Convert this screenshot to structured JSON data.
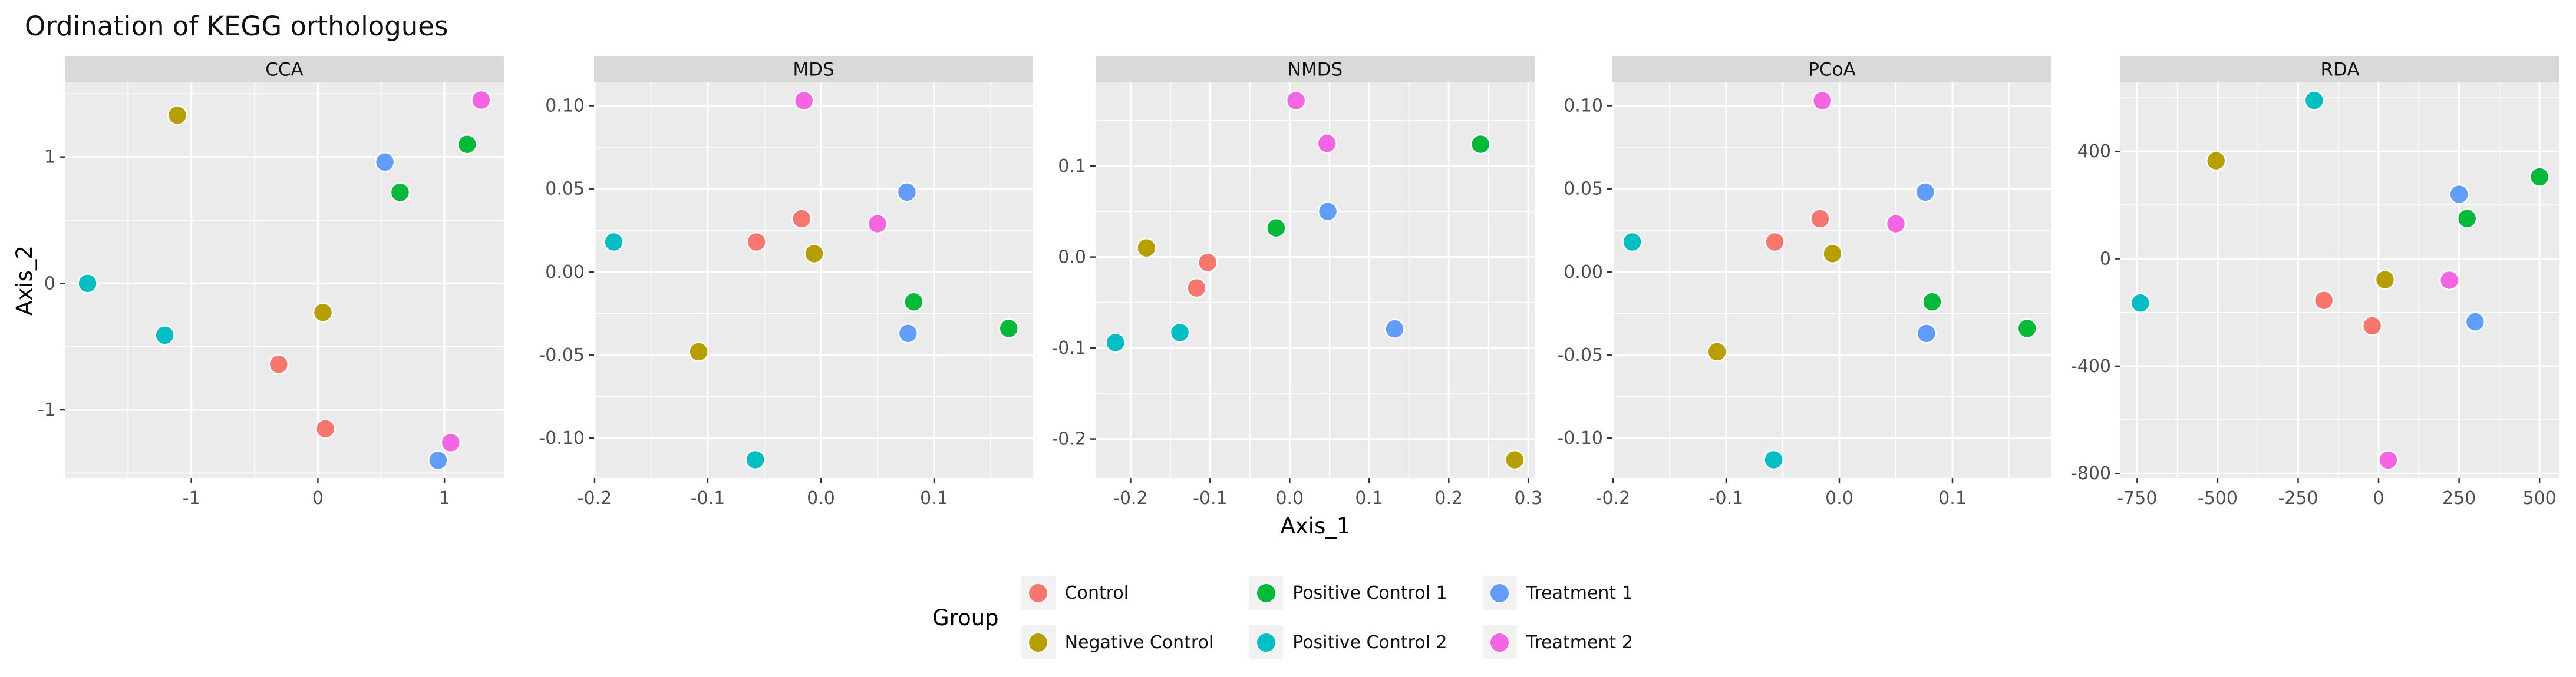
{
  "title": "Ordination of KEGG orthologues",
  "axes": {
    "x_label": "Axis_1",
    "y_label": "Axis_2"
  },
  "legend": {
    "title": "Group",
    "entries": [
      {
        "label": "Control",
        "color": "#F8766D"
      },
      {
        "label": "Negative Control",
        "color": "#B79F00"
      },
      {
        "label": "Positive Control 1",
        "color": "#00BA38"
      },
      {
        "label": "Positive Control 2",
        "color": "#00BFC4"
      },
      {
        "label": "Treatment 1",
        "color": "#619CFF"
      },
      {
        "label": "Treatment 2",
        "color": "#F564E2"
      }
    ]
  },
  "chart_data": {
    "type": "scatter",
    "title": "Ordination of KEGG orthologues",
    "xlabel": "Axis_1",
    "ylabel": "Axis_2",
    "legend_position": "bottom",
    "grid": true,
    "style": {
      "panel_bg": "#EBEBEB",
      "strip_bg": "#D9D9D9",
      "grid_color": "#FFFFFF",
      "tick_color": "#333333",
      "tick_label_color": "#4D4D4D",
      "point_stroke": "#FFFFFF"
    },
    "groups": [
      {
        "name": "Control",
        "color": "#F8766D"
      },
      {
        "name": "Negative Control",
        "color": "#B79F00"
      },
      {
        "name": "Positive Control 1",
        "color": "#00BA38"
      },
      {
        "name": "Positive Control 2",
        "color": "#00BFC4"
      },
      {
        "name": "Treatment 1",
        "color": "#619CFF"
      },
      {
        "name": "Treatment 2",
        "color": "#F564E2"
      }
    ],
    "facets": [
      {
        "name": "CCA",
        "xlim": [
          -2.0,
          1.47
        ],
        "ylim": [
          -1.54,
          1.59
        ],
        "xticks": {
          "values": [
            -1,
            0,
            1
          ],
          "labels": [
            "-1",
            "0",
            "1"
          ]
        },
        "yticks": {
          "values": [
            1,
            0,
            -1
          ],
          "labels": [
            "1",
            "0",
            "-1"
          ]
        },
        "minor_step_x": 0.5,
        "minor_step_y": 0.5,
        "series": [
          {
            "name": "Control",
            "points": [
              [
                -0.31,
                -0.64
              ],
              [
                0.06,
                -1.15
              ]
            ]
          },
          {
            "name": "Negative Control",
            "points": [
              [
                -1.11,
                1.33
              ],
              [
                0.04,
                -0.23
              ]
            ]
          },
          {
            "name": "Positive Control 1",
            "points": [
              [
                1.18,
                1.1
              ],
              [
                0.65,
                0.72
              ]
            ]
          },
          {
            "name": "Positive Control 2",
            "points": [
              [
                -1.82,
                0.0
              ],
              [
                -1.21,
                -0.41
              ]
            ]
          },
          {
            "name": "Treatment 1",
            "points": [
              [
                0.53,
                0.96
              ],
              [
                0.95,
                -1.4
              ]
            ]
          },
          {
            "name": "Treatment 2",
            "points": [
              [
                1.29,
                1.45
              ],
              [
                1.05,
                -1.26
              ]
            ]
          }
        ]
      },
      {
        "name": "MDS",
        "xlim": [
          -0.2005,
          0.1875
        ],
        "ylim": [
          -0.124,
          0.114
        ],
        "xticks": {
          "values": [
            -0.2,
            -0.1,
            0,
            0.1
          ],
          "labels": [
            "-0.2",
            "-0.1",
            "0.0",
            "0.1"
          ]
        },
        "yticks": {
          "values": [
            0.1,
            0.05,
            0,
            -0.05,
            -0.1
          ],
          "labels": [
            "0.10",
            "0.05",
            "0.00",
            "-0.05",
            "-0.10"
          ]
        },
        "minor_step_x": 0.05,
        "minor_step_y": 0.025,
        "series": [
          {
            "name": "Control",
            "points": [
              [
                -0.017,
                0.032
              ],
              [
                -0.057,
                0.018
              ]
            ]
          },
          {
            "name": "Negative Control",
            "points": [
              [
                -0.006,
                0.011
              ],
              [
                -0.108,
                -0.048
              ]
            ]
          },
          {
            "name": "Positive Control 1",
            "points": [
              [
                0.082,
                -0.018
              ],
              [
                0.166,
                -0.034
              ]
            ]
          },
          {
            "name": "Positive Control 2",
            "points": [
              [
                -0.183,
                0.018
              ],
              [
                -0.058,
                -0.113
              ]
            ]
          },
          {
            "name": "Treatment 1",
            "points": [
              [
                0.076,
                0.048
              ],
              [
                0.077,
                -0.037
              ]
            ]
          },
          {
            "name": "Treatment 2",
            "points": [
              [
                -0.015,
                0.103
              ],
              [
                0.05,
                0.029
              ]
            ]
          }
        ]
      },
      {
        "name": "NMDS",
        "xlim": [
          -0.244,
          0.308
        ],
        "ylim": [
          -0.243,
          0.192
        ],
        "xticks": {
          "values": [
            -0.2,
            -0.1,
            0,
            0.1,
            0.2,
            0.3
          ],
          "labels": [
            "-0.2",
            "-0.1",
            "0.0",
            "0.1",
            "0.2",
            "0.3"
          ]
        },
        "yticks": {
          "values": [
            0.1,
            0,
            -0.1,
            -0.2
          ],
          "labels": [
            "0.1",
            "0.0",
            "-0.1",
            "-0.2"
          ]
        },
        "minor_step_x": 0.05,
        "minor_step_y": 0.05,
        "series": [
          {
            "name": "Control",
            "points": [
              [
                -0.103,
                -0.006
              ],
              [
                -0.117,
                -0.034
              ]
            ]
          },
          {
            "name": "Negative Control",
            "points": [
              [
                -0.18,
                0.01
              ],
              [
                0.283,
                -0.223
              ]
            ]
          },
          {
            "name": "Positive Control 1",
            "points": [
              [
                -0.017,
                0.032
              ],
              [
                0.24,
                0.124
              ]
            ]
          },
          {
            "name": "Positive Control 2",
            "points": [
              [
                -0.219,
                -0.094
              ],
              [
                -0.138,
                -0.083
              ]
            ]
          },
          {
            "name": "Treatment 1",
            "points": [
              [
                0.048,
                0.05
              ],
              [
                0.132,
                -0.079
              ]
            ]
          },
          {
            "name": "Treatment 2",
            "points": [
              [
                0.008,
                0.172
              ],
              [
                0.047,
                0.125
              ]
            ]
          }
        ]
      },
      {
        "name": "PCoA",
        "xlim": [
          -0.2005,
          0.1875
        ],
        "ylim": [
          -0.124,
          0.114
        ],
        "xticks": {
          "values": [
            -0.2,
            -0.1,
            0,
            0.1
          ],
          "labels": [
            "-0.2",
            "-0.1",
            "0.0",
            "0.1"
          ]
        },
        "yticks": {
          "values": [
            0.1,
            0.05,
            0,
            -0.05,
            -0.1
          ],
          "labels": [
            "0.10",
            "0.05",
            "0.00",
            "-0.05",
            "-0.10"
          ]
        },
        "minor_step_x": 0.05,
        "minor_step_y": 0.025,
        "series": [
          {
            "name": "Control",
            "points": [
              [
                -0.017,
                0.032
              ],
              [
                -0.057,
                0.018
              ]
            ]
          },
          {
            "name": "Negative Control",
            "points": [
              [
                -0.006,
                0.011
              ],
              [
                -0.108,
                -0.048
              ]
            ]
          },
          {
            "name": "Positive Control 1",
            "points": [
              [
                0.082,
                -0.018
              ],
              [
                0.166,
                -0.034
              ]
            ]
          },
          {
            "name": "Positive Control 2",
            "points": [
              [
                -0.183,
                0.018
              ],
              [
                -0.058,
                -0.113
              ]
            ]
          },
          {
            "name": "Treatment 1",
            "points": [
              [
                0.076,
                0.048
              ],
              [
                0.077,
                -0.037
              ]
            ]
          },
          {
            "name": "Treatment 2",
            "points": [
              [
                -0.015,
                0.103
              ],
              [
                0.05,
                0.029
              ]
            ]
          }
        ]
      },
      {
        "name": "RDA",
        "xlim": [
          -802,
          562
        ],
        "ylim": [
          -817,
          657
        ],
        "xticks": {
          "values": [
            -750,
            -500,
            -250,
            0,
            250,
            500
          ],
          "labels": [
            "-750",
            "-500",
            "-250",
            "0",
            "250",
            "500"
          ]
        },
        "yticks": {
          "values": [
            400,
            0,
            -400,
            -800
          ],
          "labels": [
            "400",
            "0",
            "-400",
            "-800"
          ]
        },
        "minor_step_x": 125,
        "minor_step_y": 200,
        "series": [
          {
            "name": "Control",
            "points": [
              [
                -170,
                -155
              ],
              [
                -20,
                -250
              ]
            ]
          },
          {
            "name": "Negative Control",
            "points": [
              [
                -505,
                365
              ],
              [
                20,
                -78
              ]
            ]
          },
          {
            "name": "Positive Control 1",
            "points": [
              [
                500,
                305
              ],
              [
                275,
                150
              ]
            ]
          },
          {
            "name": "Positive Control 2",
            "points": [
              [
                -200,
                590
              ],
              [
                -740,
                -165
              ]
            ]
          },
          {
            "name": "Treatment 1",
            "points": [
              [
                250,
                240
              ],
              [
                300,
                -235
              ]
            ]
          },
          {
            "name": "Treatment 2",
            "points": [
              [
                220,
                -80
              ],
              [
                30,
                -750
              ]
            ]
          }
        ]
      }
    ]
  }
}
